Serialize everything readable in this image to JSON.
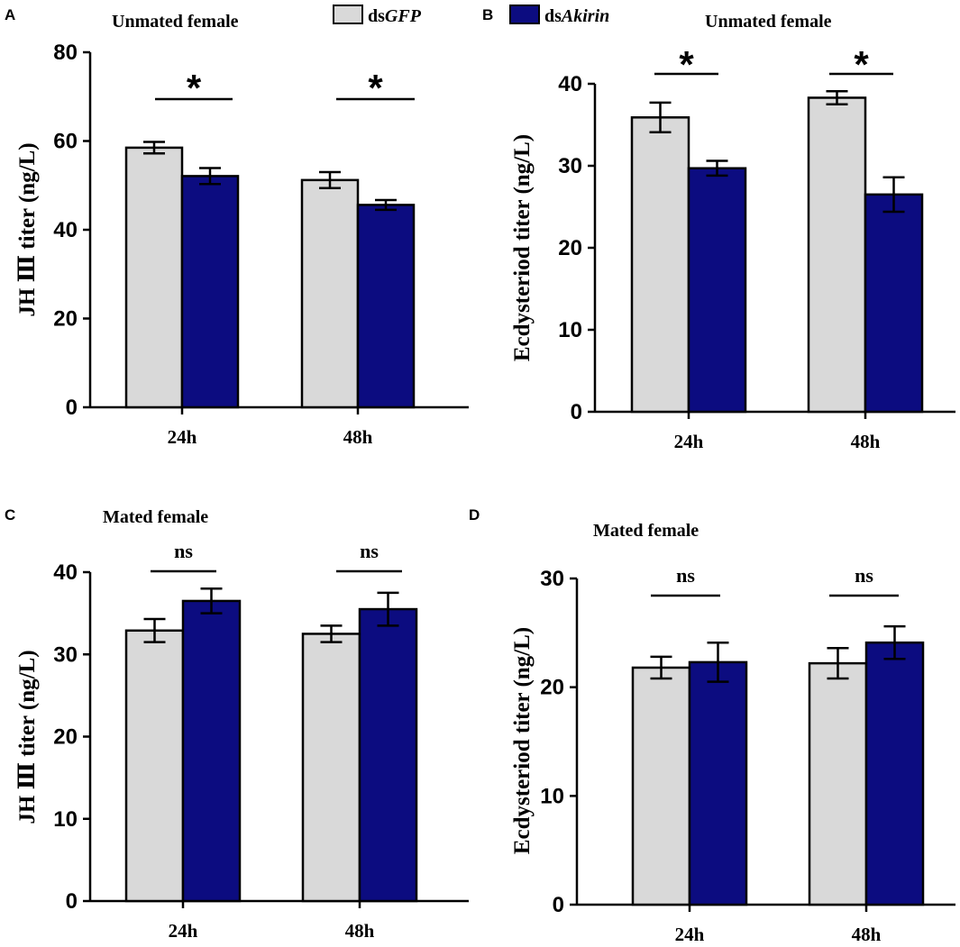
{
  "legend": {
    "series": [
      {
        "prefix": "ds",
        "name": "GFP",
        "color": "#d9d9d9"
      },
      {
        "prefix": "ds",
        "name": "Akirin",
        "color": "#0c0c80"
      }
    ]
  },
  "chart_data": [
    {
      "panel": "A",
      "type": "bar",
      "title": "Unmated female",
      "ylabel": "JH Ⅲ titer (ng/L)",
      "xlabel": "",
      "categories": [
        "24h",
        "48h"
      ],
      "ylim": [
        0,
        80
      ],
      "yticks": [
        0,
        20,
        40,
        60,
        80
      ],
      "series": [
        {
          "name": "dsGFP",
          "values": [
            58.5,
            51.2
          ],
          "errors": [
            1.3,
            1.8
          ]
        },
        {
          "name": "dsAkirin",
          "values": [
            52.1,
            45.6
          ],
          "errors": [
            1.8,
            1.1
          ]
        }
      ],
      "significance": [
        "*",
        "*"
      ]
    },
    {
      "panel": "B",
      "type": "bar",
      "title": "Unmated female",
      "ylabel": "Ecdysteriod titer (ng/L)",
      "xlabel": "",
      "categories": [
        "24h",
        "48h"
      ],
      "ylim": [
        0,
        40
      ],
      "yticks": [
        0,
        10,
        20,
        30,
        40
      ],
      "series": [
        {
          "name": "dsGFP",
          "values": [
            35.9,
            38.3
          ],
          "errors": [
            1.8,
            0.8
          ]
        },
        {
          "name": "dsAkirin",
          "values": [
            29.7,
            26.5
          ],
          "errors": [
            0.9,
            2.1
          ]
        }
      ],
      "significance": [
        "*",
        "*"
      ]
    },
    {
      "panel": "C",
      "type": "bar",
      "title": "Mated female",
      "ylabel": "JH Ⅲ titer (ng/L)",
      "xlabel": "",
      "categories": [
        "24h",
        "48h"
      ],
      "ylim": [
        0,
        40
      ],
      "yticks": [
        0,
        10,
        20,
        30,
        40
      ],
      "series": [
        {
          "name": "dsGFP",
          "values": [
            32.9,
            32.5
          ],
          "errors": [
            1.4,
            1.0
          ]
        },
        {
          "name": "dsAkirin",
          "values": [
            36.5,
            35.5
          ],
          "errors": [
            1.5,
            2.0
          ]
        }
      ],
      "significance": [
        "ns",
        "ns"
      ]
    },
    {
      "panel": "D",
      "type": "bar",
      "title": "Mated female",
      "ylabel": "Ecdysteriod titer (ng/L)",
      "xlabel": "",
      "categories": [
        "24h",
        "48h"
      ],
      "ylim": [
        0,
        30
      ],
      "yticks": [
        0,
        10,
        20,
        30
      ],
      "series": [
        {
          "name": "dsGFP",
          "values": [
            21.8,
            22.2
          ],
          "errors": [
            1.0,
            1.4
          ]
        },
        {
          "name": "dsAkirin",
          "values": [
            22.3,
            24.1
          ],
          "errors": [
            1.8,
            1.5
          ]
        }
      ],
      "significance": [
        "ns",
        "ns"
      ]
    }
  ]
}
